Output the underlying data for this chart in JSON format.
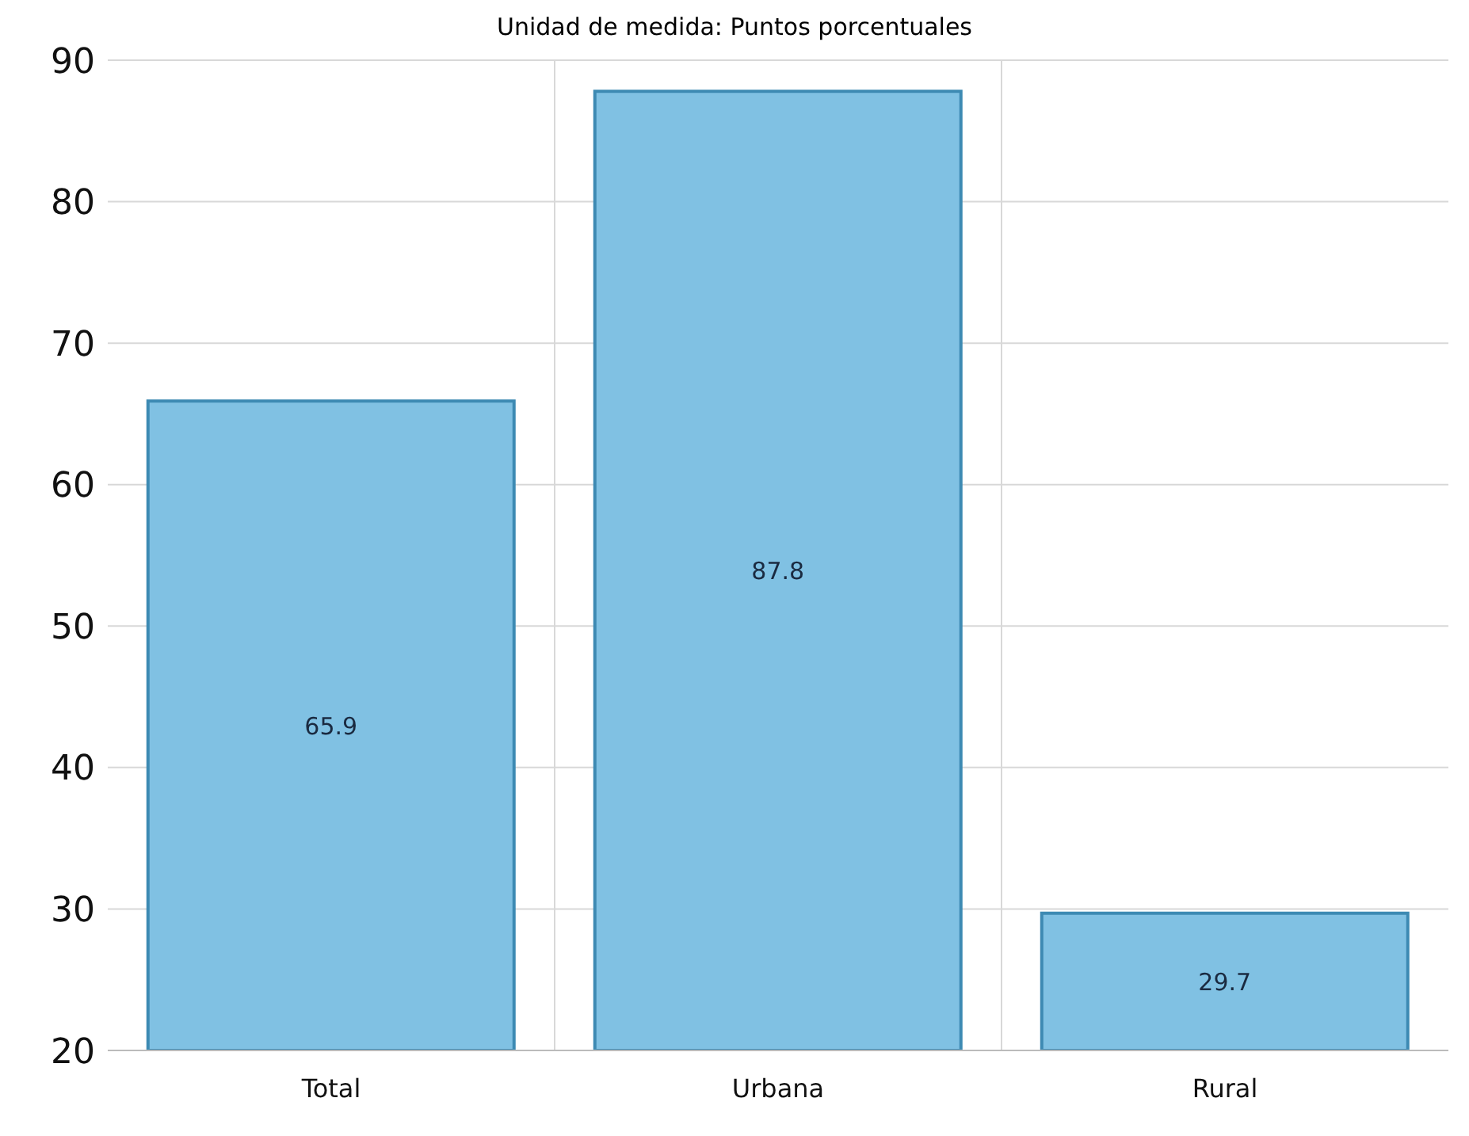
{
  "chart_data": {
    "type": "bar",
    "subtitle": "Unidad de medida: Puntos porcentuales",
    "categories": [
      "Total",
      "Urbana",
      "Rural"
    ],
    "values": [
      65.9,
      87.8,
      29.7
    ],
    "color": "#80c1e3",
    "ylim": [
      20,
      90
    ],
    "yticks": [
      20,
      30,
      40,
      50,
      60,
      70,
      80,
      90
    ],
    "grid": true,
    "data_labels": true
  }
}
